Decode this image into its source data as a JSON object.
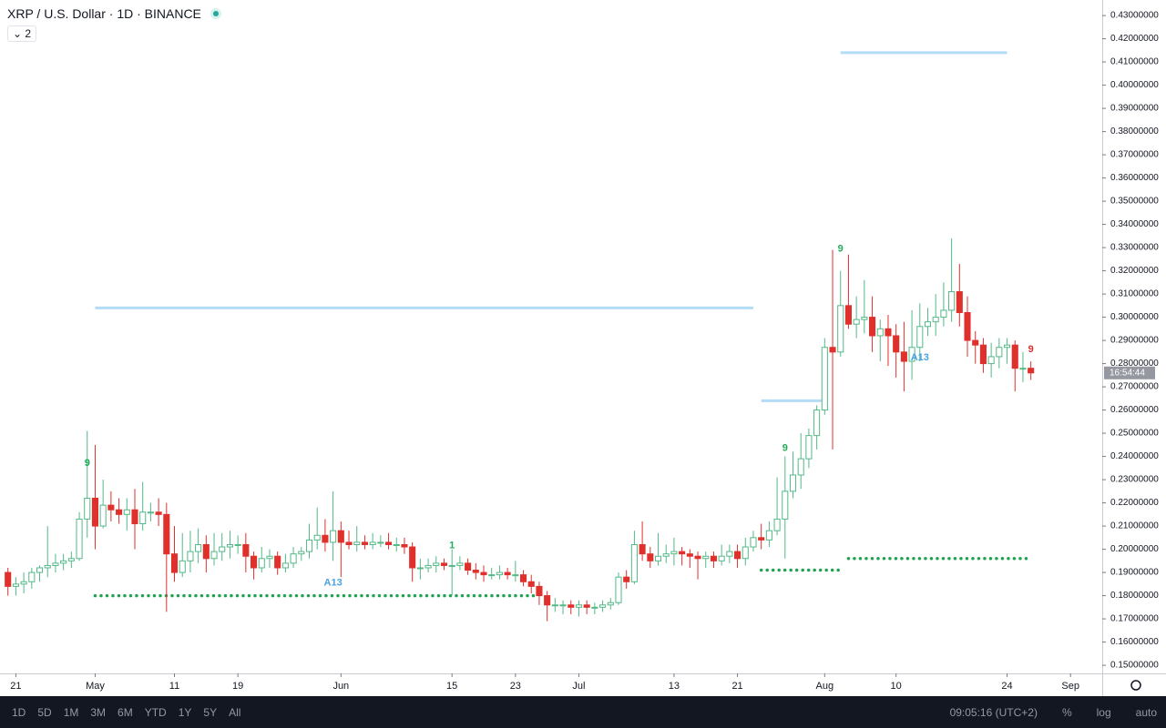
{
  "chart_data": {
    "type": "candlestick",
    "title": "XRP / U.S. Dollar · 1D · BINANCE",
    "indicator_count": 2,
    "up_color": "#53b987",
    "down_color": "#e0302c",
    "x": [
      "04-20",
      "04-21",
      "04-22",
      "04-23",
      "04-24",
      "04-25",
      "04-26",
      "04-27",
      "04-28",
      "04-29",
      "04-30",
      "05-01",
      "05-02",
      "05-03",
      "05-04",
      "05-05",
      "05-06",
      "05-07",
      "05-08",
      "05-09",
      "05-10",
      "05-11",
      "05-12",
      "05-13",
      "05-14",
      "05-15",
      "05-16",
      "05-17",
      "05-18",
      "05-19",
      "05-20",
      "05-21",
      "05-22",
      "05-23",
      "05-24",
      "05-25",
      "05-26",
      "05-27",
      "05-28",
      "05-29",
      "05-30",
      "05-31",
      "06-01",
      "06-02",
      "06-03",
      "06-04",
      "06-05",
      "06-06",
      "06-07",
      "06-08",
      "06-09",
      "06-10",
      "06-11",
      "06-12",
      "06-13",
      "06-14",
      "06-15",
      "06-16",
      "06-17",
      "06-18",
      "06-19",
      "06-20",
      "06-21",
      "06-22",
      "06-23",
      "06-24",
      "06-25",
      "06-26",
      "06-27",
      "06-28",
      "06-29",
      "06-30",
      "07-01",
      "07-02",
      "07-03",
      "07-04",
      "07-05",
      "07-06",
      "07-07",
      "07-08",
      "07-09",
      "07-10",
      "07-11",
      "07-12",
      "07-13",
      "07-14",
      "07-15",
      "07-16",
      "07-17",
      "07-18",
      "07-19",
      "07-20",
      "07-21",
      "07-22",
      "07-23",
      "07-24",
      "07-25",
      "07-26",
      "07-27",
      "07-28",
      "07-29",
      "07-30",
      "07-31",
      "08-01",
      "08-02",
      "08-03",
      "08-04",
      "08-05",
      "08-06",
      "08-07",
      "08-08",
      "08-09",
      "08-10",
      "08-11",
      "08-12",
      "08-13",
      "08-14",
      "08-15",
      "08-16",
      "08-17",
      "08-18",
      "08-19",
      "08-20",
      "08-21",
      "08-22",
      "08-23",
      "08-24",
      "08-25",
      "08-26",
      "08-27"
    ],
    "open": [
      0.19,
      0.184,
      0.185,
      0.186,
      0.19,
      0.192,
      0.193,
      0.194,
      0.195,
      0.196,
      0.213,
      0.222,
      0.21,
      0.219,
      0.217,
      0.215,
      0.217,
      0.211,
      0.216,
      0.216,
      0.215,
      0.198,
      0.19,
      0.195,
      0.199,
      0.202,
      0.196,
      0.199,
      0.201,
      0.202,
      0.202,
      0.197,
      0.192,
      0.196,
      0.197,
      0.192,
      0.194,
      0.198,
      0.199,
      0.204,
      0.206,
      0.203,
      0.208,
      0.203,
      0.202,
      0.203,
      0.202,
      0.203,
      0.203,
      0.202,
      0.202,
      0.201,
      0.192,
      0.192,
      0.193,
      0.194,
      0.193,
      0.193,
      0.194,
      0.191,
      0.19,
      0.189,
      0.189,
      0.19,
      0.189,
      0.189,
      0.186,
      0.184,
      0.18,
      0.176,
      0.176,
      0.176,
      0.175,
      0.176,
      0.175,
      0.175,
      0.176,
      0.177,
      0.188,
      0.186,
      0.202,
      0.198,
      0.195,
      0.197,
      0.198,
      0.199,
      0.198,
      0.197,
      0.196,
      0.197,
      0.195,
      0.197,
      0.199,
      0.196,
      0.201,
      0.205,
      0.204,
      0.208,
      0.213,
      0.225,
      0.232,
      0.239,
      0.249,
      0.26,
      0.287,
      0.285,
      0.305,
      0.297,
      0.299,
      0.3,
      0.292,
      0.295,
      0.292,
      0.285,
      0.281,
      0.287,
      0.296,
      0.298,
      0.3,
      0.303,
      0.311,
      0.302,
      0.29,
      0.288,
      0.28,
      0.283,
      0.287,
      0.288,
      0.278,
      0.278
    ],
    "high": [
      0.192,
      0.188,
      0.19,
      0.192,
      0.193,
      0.21,
      0.198,
      0.198,
      0.199,
      0.216,
      0.251,
      0.245,
      0.23,
      0.225,
      0.222,
      0.222,
      0.226,
      0.229,
      0.22,
      0.222,
      0.22,
      0.21,
      0.207,
      0.208,
      0.209,
      0.206,
      0.207,
      0.207,
      0.208,
      0.206,
      0.207,
      0.199,
      0.201,
      0.2,
      0.199,
      0.198,
      0.201,
      0.201,
      0.211,
      0.218,
      0.213,
      0.225,
      0.212,
      0.208,
      0.21,
      0.206,
      0.207,
      0.206,
      0.207,
      0.205,
      0.205,
      0.203,
      0.196,
      0.196,
      0.197,
      0.196,
      0.2,
      0.197,
      0.196,
      0.194,
      0.193,
      0.192,
      0.193,
      0.192,
      0.195,
      0.191,
      0.189,
      0.186,
      0.182,
      0.179,
      0.178,
      0.178,
      0.178,
      0.178,
      0.177,
      0.178,
      0.179,
      0.19,
      0.191,
      0.208,
      0.212,
      0.201,
      0.207,
      0.202,
      0.205,
      0.201,
      0.2,
      0.199,
      0.199,
      0.199,
      0.202,
      0.202,
      0.202,
      0.205,
      0.208,
      0.211,
      0.212,
      0.231,
      0.24,
      0.242,
      0.25,
      0.252,
      0.262,
      0.291,
      0.329,
      0.32,
      0.327,
      0.309,
      0.316,
      0.309,
      0.299,
      0.301,
      0.297,
      0.298,
      0.303,
      0.306,
      0.304,
      0.31,
      0.315,
      0.334,
      0.323,
      0.309,
      0.294,
      0.291,
      0.289,
      0.291,
      0.291,
      0.29,
      0.285,
      0.281
    ],
    "low": [
      0.18,
      0.18,
      0.181,
      0.183,
      0.186,
      0.188,
      0.19,
      0.191,
      0.192,
      0.195,
      0.205,
      0.2,
      0.209,
      0.212,
      0.211,
      0.208,
      0.2,
      0.208,
      0.212,
      0.21,
      0.173,
      0.186,
      0.188,
      0.19,
      0.194,
      0.19,
      0.193,
      0.195,
      0.196,
      0.198,
      0.19,
      0.187,
      0.19,
      0.192,
      0.189,
      0.19,
      0.192,
      0.195,
      0.196,
      0.2,
      0.199,
      0.195,
      0.188,
      0.2,
      0.199,
      0.2,
      0.2,
      0.201,
      0.2,
      0.199,
      0.198,
      0.186,
      0.187,
      0.19,
      0.19,
      0.191,
      0.18,
      0.191,
      0.189,
      0.187,
      0.186,
      0.187,
      0.187,
      0.187,
      0.186,
      0.184,
      0.181,
      0.176,
      0.169,
      0.173,
      0.172,
      0.172,
      0.171,
      0.172,
      0.172,
      0.173,
      0.174,
      0.176,
      0.183,
      0.185,
      0.195,
      0.192,
      0.193,
      0.194,
      0.193,
      0.193,
      0.192,
      0.187,
      0.192,
      0.192,
      0.193,
      0.194,
      0.192,
      0.193,
      0.199,
      0.2,
      0.201,
      0.206,
      0.196,
      0.222,
      0.226,
      0.235,
      0.243,
      0.258,
      0.243,
      0.283,
      0.295,
      0.291,
      0.293,
      0.285,
      0.281,
      0.279,
      0.274,
      0.268,
      0.273,
      0.281,
      0.292,
      0.292,
      0.296,
      0.298,
      0.296,
      0.283,
      0.28,
      0.276,
      0.274,
      0.278,
      0.28,
      0.268,
      0.272,
      0.273
    ],
    "close": [
      0.184,
      0.185,
      0.186,
      0.19,
      0.192,
      0.193,
      0.194,
      0.195,
      0.196,
      0.213,
      0.222,
      0.21,
      0.219,
      0.217,
      0.215,
      0.217,
      0.211,
      0.216,
      0.216,
      0.215,
      0.198,
      0.19,
      0.195,
      0.199,
      0.202,
      0.196,
      0.199,
      0.201,
      0.202,
      0.202,
      0.197,
      0.192,
      0.196,
      0.197,
      0.192,
      0.194,
      0.198,
      0.199,
      0.204,
      0.206,
      0.203,
      0.208,
      0.203,
      0.202,
      0.203,
      0.202,
      0.203,
      0.203,
      0.202,
      0.202,
      0.201,
      0.192,
      0.192,
      0.193,
      0.194,
      0.193,
      0.193,
      0.194,
      0.191,
      0.19,
      0.189,
      0.189,
      0.19,
      0.189,
      0.189,
      0.186,
      0.184,
      0.18,
      0.176,
      0.176,
      0.176,
      0.175,
      0.176,
      0.175,
      0.175,
      0.176,
      0.177,
      0.188,
      0.186,
      0.202,
      0.198,
      0.195,
      0.197,
      0.198,
      0.199,
      0.198,
      0.197,
      0.196,
      0.197,
      0.195,
      0.197,
      0.199,
      0.196,
      0.201,
      0.205,
      0.204,
      0.208,
      0.213,
      0.225,
      0.232,
      0.239,
      0.249,
      0.26,
      0.287,
      0.285,
      0.305,
      0.297,
      0.299,
      0.3,
      0.292,
      0.295,
      0.292,
      0.285,
      0.281,
      0.287,
      0.296,
      0.298,
      0.3,
      0.303,
      0.311,
      0.302,
      0.29,
      0.288,
      0.28,
      0.283,
      0.287,
      0.288,
      0.278,
      0.278,
      0.276
    ],
    "xlim": [
      "04-19",
      "09-05"
    ],
    "xticks": [
      {
        "value": "04-21",
        "label": "21"
      },
      {
        "value": "05-01",
        "label": "May"
      },
      {
        "value": "05-11",
        "label": "11"
      },
      {
        "value": "05-19",
        "label": "19"
      },
      {
        "value": "06-01",
        "label": "Jun"
      },
      {
        "value": "06-15",
        "label": "15"
      },
      {
        "value": "06-23",
        "label": "23"
      },
      {
        "value": "07-01",
        "label": "Jul"
      },
      {
        "value": "07-13",
        "label": "13"
      },
      {
        "value": "07-21",
        "label": "21"
      },
      {
        "value": "08-01",
        "label": "Aug"
      },
      {
        "value": "08-10",
        "label": "10"
      },
      {
        "value": "08-24",
        "label": "24"
      },
      {
        "value": "09-01",
        "label": "Sep"
      }
    ],
    "ylim": [
      0.1465,
      0.4367
    ],
    "yticks": [
      {
        "value": 0.15,
        "label": "0.15000000"
      },
      {
        "value": 0.16,
        "label": "0.16000000"
      },
      {
        "value": 0.17,
        "label": "0.17000000"
      },
      {
        "value": 0.18,
        "label": "0.18000000"
      },
      {
        "value": 0.19,
        "label": "0.19000000"
      },
      {
        "value": 0.2,
        "label": "0.20000000"
      },
      {
        "value": 0.21,
        "label": "0.21000000"
      },
      {
        "value": 0.22,
        "label": "0.22000000"
      },
      {
        "value": 0.23,
        "label": "0.23000000"
      },
      {
        "value": 0.24,
        "label": "0.24000000"
      },
      {
        "value": 0.25,
        "label": "0.25000000"
      },
      {
        "value": 0.26,
        "label": "0.26000000"
      },
      {
        "value": 0.27,
        "label": "0.27000000"
      },
      {
        "value": 0.28,
        "label": "0.28000000"
      },
      {
        "value": 0.29,
        "label": "0.29000000"
      },
      {
        "value": 0.3,
        "label": "0.30000000"
      },
      {
        "value": 0.31,
        "label": "0.31000000"
      },
      {
        "value": 0.32,
        "label": "0.32000000"
      },
      {
        "value": 0.33,
        "label": "0.33000000"
      },
      {
        "value": 0.34,
        "label": "0.34000000"
      },
      {
        "value": 0.35,
        "label": "0.35000000"
      },
      {
        "value": 0.36,
        "label": "0.36000000"
      },
      {
        "value": 0.37,
        "label": "0.37000000"
      },
      {
        "value": 0.38,
        "label": "0.38000000"
      },
      {
        "value": 0.39,
        "label": "0.39000000"
      },
      {
        "value": 0.4,
        "label": "0.40000000"
      },
      {
        "value": 0.41,
        "label": "0.41000000"
      },
      {
        "value": 0.42,
        "label": "0.42000000"
      },
      {
        "value": 0.43,
        "label": "0.43000000"
      }
    ],
    "price_marker": {
      "value": 0.276,
      "label": "16:54:44"
    },
    "levels": [
      {
        "value": 0.304,
        "from": "05-01",
        "to": "07-23",
        "color": "#b3dcf7",
        "style": "solid"
      },
      {
        "value": 0.264,
        "from": "07-24",
        "to": "08-01",
        "color": "#b3dcf7",
        "style": "solid"
      },
      {
        "value": 0.414,
        "from": "08-03",
        "to": "08-24",
        "color": "#b3dcf7",
        "style": "solid"
      },
      {
        "value": 0.18,
        "from": "05-01",
        "to": "06-26",
        "color": "#1fa34f",
        "style": "dotted"
      },
      {
        "value": 0.191,
        "from": "07-24",
        "to": "08-03",
        "color": "#1fa34f",
        "style": "dotted"
      },
      {
        "value": 0.196,
        "from": "08-04",
        "to": "08-27",
        "color": "#1fa34f",
        "style": "dotted"
      }
    ],
    "annotations": [
      {
        "text": "9",
        "x": "04-30",
        "y": 0.237,
        "color": "#22ab5c"
      },
      {
        "text": "A13",
        "x": "05-31",
        "y": 0.1855,
        "color": "#4aa3df"
      },
      {
        "text": "1",
        "x": "06-15",
        "y": 0.2015,
        "color": "#22ab5c"
      },
      {
        "text": "9",
        "x": "07-27",
        "y": 0.2435,
        "color": "#22ab5c"
      },
      {
        "text": "9",
        "x": "08-03",
        "y": 0.3295,
        "color": "#22ab5c"
      },
      {
        "text": "A13",
        "x": "08-13",
        "y": 0.2825,
        "color": "#4aa3df"
      },
      {
        "text": "9",
        "x": "08-27",
        "y": 0.286,
        "color": "#e0302c"
      }
    ]
  },
  "toolbar": {
    "ranges": [
      "1D",
      "5D",
      "1M",
      "3M",
      "6M",
      "YTD",
      "1Y",
      "5Y",
      "All"
    ],
    "clock": "09:05:16 (UTC+2)",
    "buttons": [
      "%",
      "log",
      "auto"
    ]
  }
}
